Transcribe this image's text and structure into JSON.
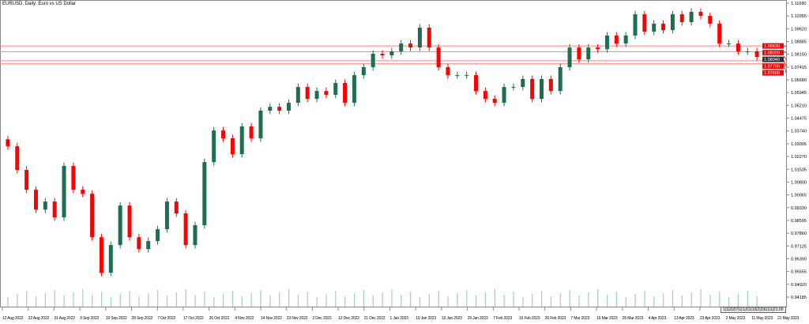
{
  "window": {
    "title": "EURUSD, Daily:  Euro vs US Dollar"
  },
  "colors": {
    "bull": "#1e6e50",
    "bear": "#ff0000",
    "level_line": "#ff8080",
    "volume": "#9fd4b0",
    "current_label": "#263238"
  },
  "chart_data": {
    "type": "candlestick",
    "title": "EURUSD, Daily:  Euro vs US Dollar",
    "ylim": [
      0.94185,
      1.1109
    ],
    "y_ticks": [
      "1.11090",
      "1.10355",
      "1.09620",
      "1.08885",
      "1.08150",
      "1.07415",
      "1.06680",
      "1.05945",
      "1.05210",
      "1.04475",
      "1.03740",
      "1.03005",
      "1.02270",
      "1.01535",
      "1.00800",
      "1.00065",
      "0.99330",
      "0.98595",
      "0.97860",
      "0.97125",
      "0.96390",
      "0.95655",
      "0.94920",
      "0.94185"
    ],
    "x_ticks": [
      "12 Aug 2022",
      "22 Aug 2022",
      "31 Aug 2022",
      "9 Sep 2022",
      "19 Sep 2022",
      "28 Sep 2022",
      "7 Oct 2022",
      "17 Oct 2022",
      "26 Oct 2022",
      "4 Nov 2022",
      "14 Nov 2022",
      "23 Nov 2022",
      "2 Dec 2022",
      "12 Dec 2022",
      "21 Dec 2022",
      "1 Jan 2023",
      "10 Jan 2023",
      "19 Jan 2023",
      "29 Jan 2023",
      "7 Feb 2023",
      "16 Feb 2023",
      "26 Feb 2023",
      "7 Mar 2023",
      "16 Mar 2023",
      "26 Mar 2023",
      "4 Apr 2023",
      "13 Apr 2023",
      "23 Apr 2023",
      "2 May 2023",
      "11 May 2023",
      "21 May 2023"
    ],
    "closes": [
      1.0286,
      1.015,
      1.0036,
      0.9922,
      0.9968,
      0.9877,
      1.0173,
      1.0036,
      1.0013,
      0.9763,
      0.9559,
      0.9718,
      0.9945,
      0.9763,
      0.9695,
      0.9741,
      0.9809,
      0.9968,
      0.99,
      0.9718,
      0.9832,
      1.0195,
      1.0377,
      1.0332,
      1.0241,
      1.04,
      1.0332,
      1.0491,
      1.0513,
      1.0491,
      1.0536,
      1.0627,
      1.0559,
      1.0604,
      1.0582,
      1.065,
      1.0536,
      1.0695,
      1.0741,
      1.0818,
      1.0809,
      1.0832,
      1.0877,
      1.0854,
      1.0968,
      1.0854,
      1.0741,
      1.0695,
      1.0695,
      1.0695,
      1.0604,
      1.0559,
      1.0536,
      1.0627,
      1.0627,
      1.0673,
      1.0559,
      1.0673,
      1.0604,
      1.0741,
      1.0854,
      1.0786,
      1.0854,
      1.0845,
      1.0923,
      1.0877,
      1.0923,
      1.1045,
      1.0945,
      1.0991,
      1.0954,
      1.1045,
      1.1,
      1.1059,
      1.1036,
      1.0991,
      1.0877,
      1.0877,
      1.0832,
      1.0832,
      1.08
    ],
    "levels": [
      {
        "price": 1.0863,
        "label": "1.08630"
      },
      {
        "price": 1.083,
        "label": "1.08300"
      },
      {
        "price": 1.0778,
        "label": "1.07780"
      },
      {
        "price": 1.076,
        "label": "1.07600"
      }
    ],
    "current_price": {
      "price": 1.0804,
      "label": "1.08040"
    },
    "grid": false
  },
  "navigator": {
    "label": "1|1|2|2|7|1|1|2|1|10|2|2|6|1|1|21:00"
  }
}
